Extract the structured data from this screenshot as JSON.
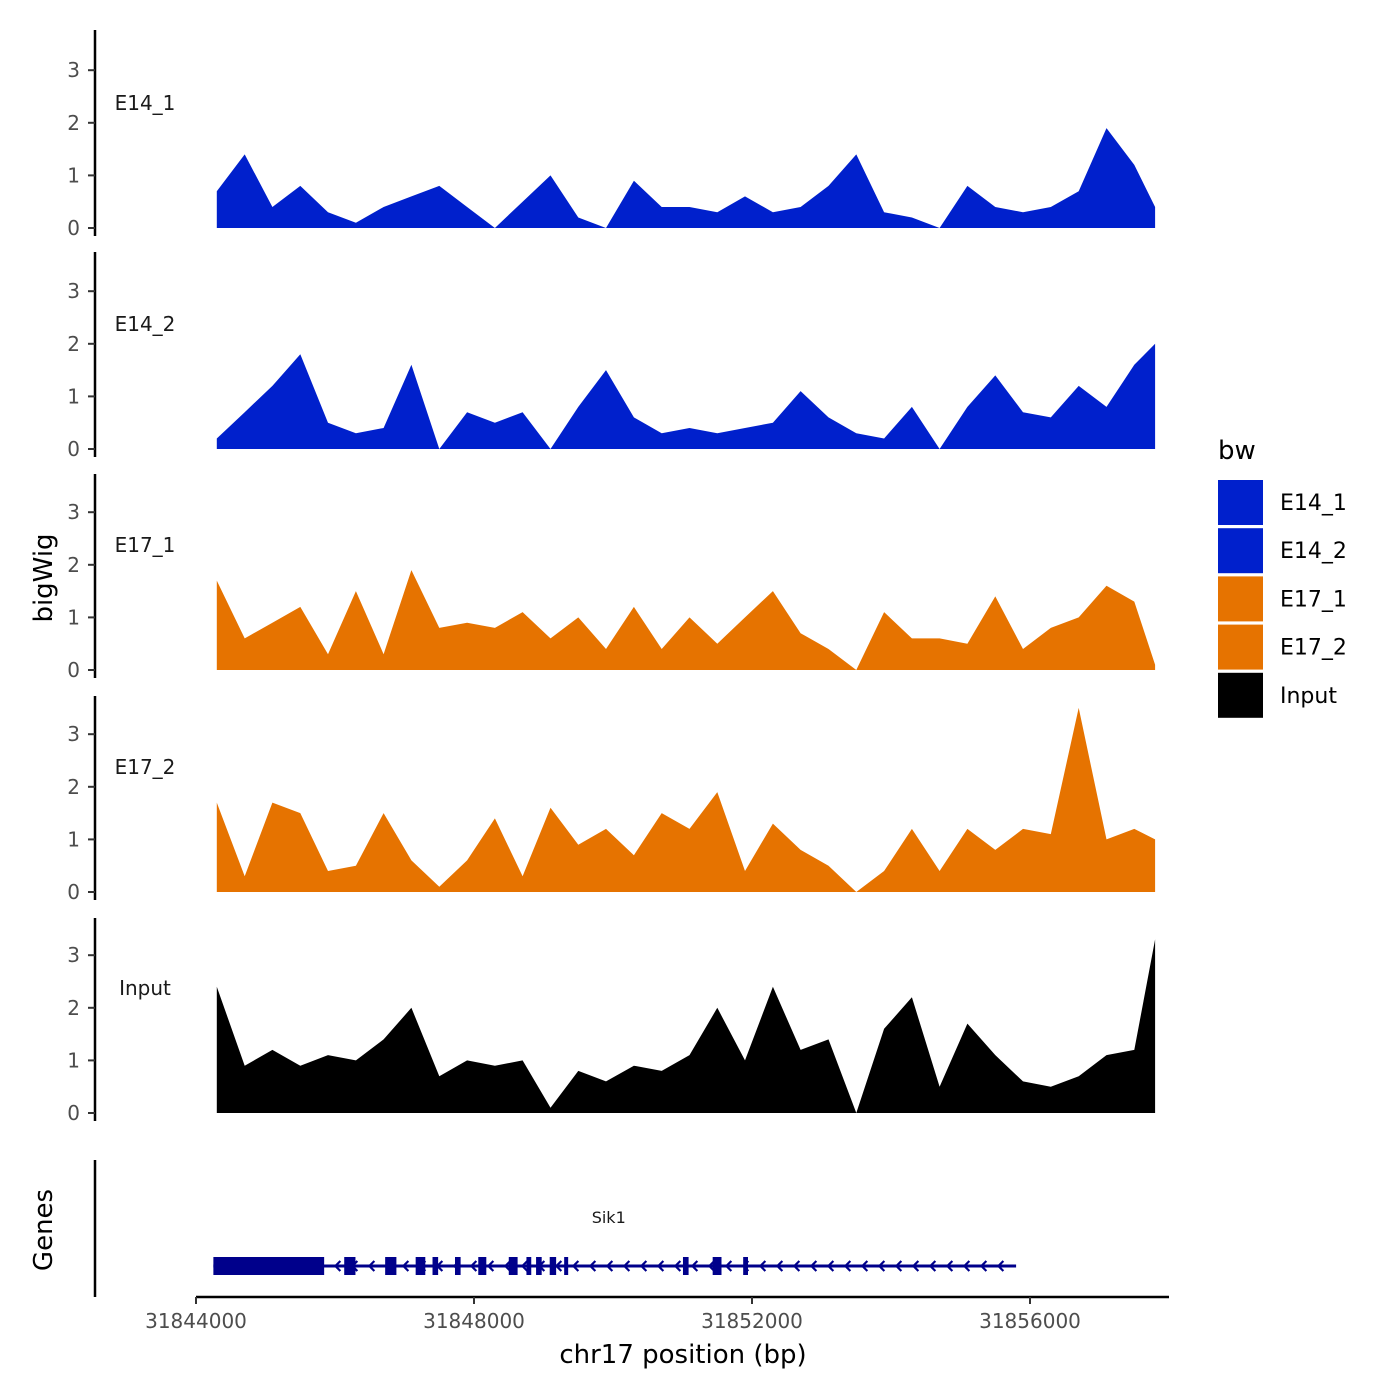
{
  "chart_data": {
    "type": "area",
    "ylabel": "bigWig",
    "xlabel": "chr17 position (bp)",
    "genes_label": "Genes",
    "xlim": [
      31844000,
      31858000
    ],
    "x_tick_labels": [
      "31844000",
      "31848000",
      "31852000",
      "31856000"
    ],
    "y_tick_labels": [
      "0",
      "1",
      "2",
      "3"
    ],
    "ylim": [
      0,
      3.7
    ],
    "legend": {
      "title": "bw",
      "entries": [
        {
          "label": "E14_1",
          "color": "#0020cc"
        },
        {
          "label": "E14_2",
          "color": "#0020cc"
        },
        {
          "label": "E17_1",
          "color": "#e67300"
        },
        {
          "label": "E17_2",
          "color": "#e67300"
        },
        {
          "label": "Input",
          "color": "#000000"
        }
      ]
    },
    "x": [
      31844300,
      31844700,
      31845100,
      31845500,
      31845900,
      31846300,
      31846700,
      31847100,
      31847500,
      31847900,
      31848300,
      31848700,
      31849100,
      31849500,
      31849900,
      31850300,
      31850700,
      31851100,
      31851500,
      31851900,
      31852300,
      31852700,
      31853100,
      31853500,
      31853900,
      31854300,
      31854700,
      31855100,
      31855500,
      31855900,
      31856300,
      31856700,
      31857100,
      31857500,
      31857800
    ],
    "series": [
      {
        "name": "E14_1",
        "color": "#0020cc",
        "values": [
          0.7,
          1.4,
          0.4,
          0.8,
          0.3,
          0.1,
          0.4,
          0.6,
          0.8,
          0.4,
          0.0,
          0.5,
          1.0,
          0.2,
          0.0,
          0.9,
          0.4,
          0.4,
          0.3,
          0.6,
          0.3,
          0.4,
          0.8,
          1.4,
          0.3,
          0.2,
          0.0,
          0.8,
          0.4,
          0.3,
          0.4,
          0.7,
          1.9,
          1.2,
          0.4
        ]
      },
      {
        "name": "E14_2",
        "color": "#0020cc",
        "values": [
          0.2,
          0.7,
          1.2,
          1.8,
          0.5,
          0.3,
          0.4,
          1.6,
          0.0,
          0.7,
          0.5,
          0.7,
          0.0,
          0.8,
          1.5,
          0.6,
          0.3,
          0.4,
          0.3,
          0.4,
          0.5,
          1.1,
          0.6,
          0.3,
          0.2,
          0.8,
          0.0,
          0.8,
          1.4,
          0.7,
          0.6,
          1.2,
          0.8,
          1.6,
          2.0
        ]
      },
      {
        "name": "E17_1",
        "color": "#e67300",
        "values": [
          1.7,
          0.6,
          0.9,
          1.2,
          0.3,
          1.5,
          0.3,
          1.9,
          0.8,
          0.9,
          0.8,
          1.1,
          0.6,
          1.0,
          0.4,
          1.2,
          0.4,
          1.0,
          0.5,
          1.0,
          1.5,
          0.7,
          0.4,
          0.0,
          1.1,
          0.6,
          0.6,
          0.5,
          1.4,
          0.4,
          0.8,
          1.0,
          1.6,
          1.3,
          0.1
        ]
      },
      {
        "name": "E17_2",
        "color": "#e67300",
        "values": [
          1.7,
          0.3,
          1.7,
          1.5,
          0.4,
          0.5,
          1.5,
          0.6,
          0.1,
          0.6,
          1.4,
          0.3,
          1.6,
          0.9,
          1.2,
          0.7,
          1.5,
          1.2,
          1.9,
          0.4,
          1.3,
          0.8,
          0.5,
          0.0,
          0.4,
          1.2,
          0.4,
          1.2,
          0.8,
          1.2,
          1.1,
          3.5,
          1.0,
          1.2,
          1.0
        ]
      },
      {
        "name": "Input",
        "color": "#000000",
        "values": [
          2.4,
          0.9,
          1.2,
          0.9,
          1.1,
          1.0,
          1.4,
          2.0,
          0.7,
          1.0,
          0.9,
          1.0,
          0.1,
          0.8,
          0.6,
          0.9,
          0.8,
          1.1,
          2.0,
          1.0,
          2.4,
          1.2,
          1.4,
          0.0,
          1.6,
          2.2,
          0.5,
          1.7,
          1.1,
          0.6,
          0.5,
          0.7,
          1.1,
          1.2,
          3.3
        ]
      }
    ],
    "genes": [
      {
        "name": "Sik1",
        "start": 31844250,
        "end": 31855800,
        "strand": "-"
      }
    ]
  }
}
